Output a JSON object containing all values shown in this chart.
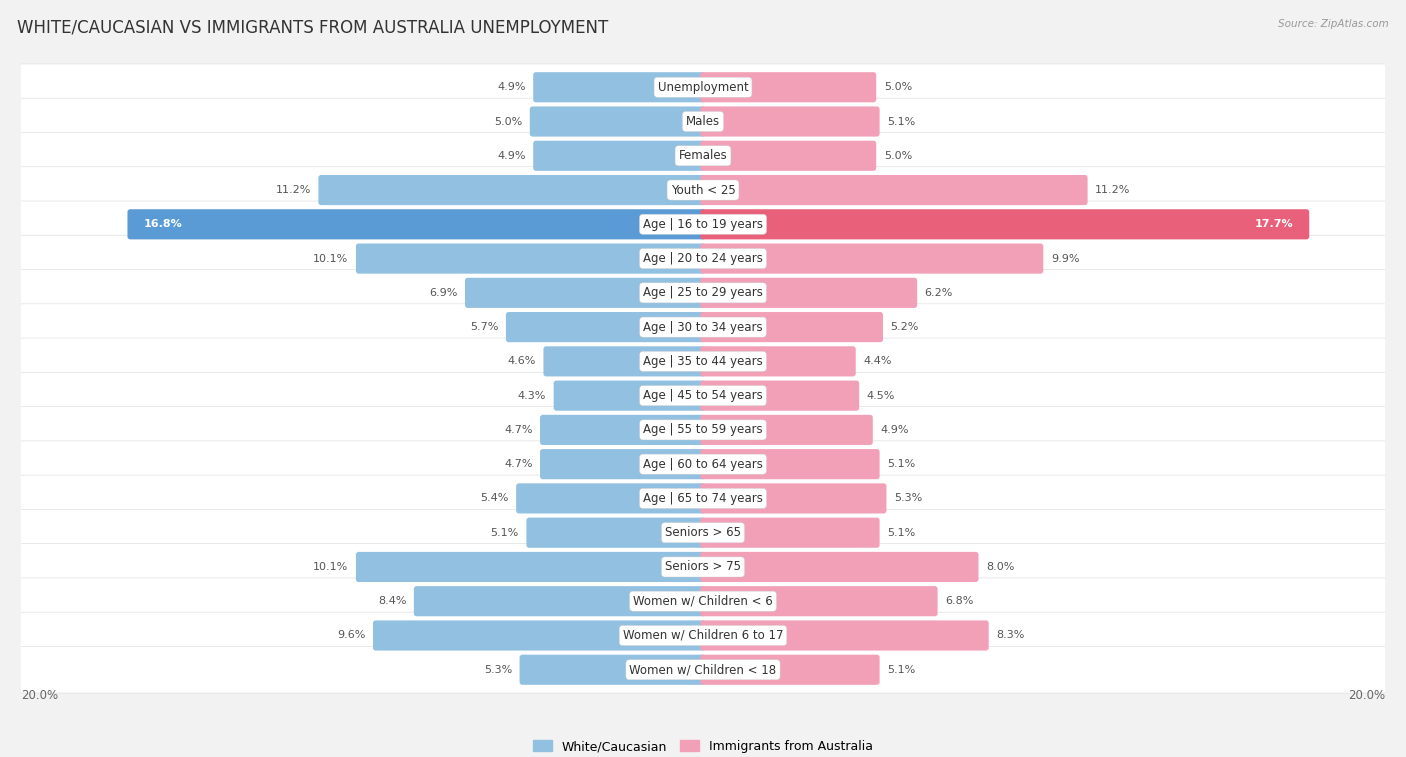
{
  "title": "WHITE/CAUCASIAN VS IMMIGRANTS FROM AUSTRALIA UNEMPLOYMENT",
  "source": "Source: ZipAtlas.com",
  "categories": [
    "Unemployment",
    "Males",
    "Females",
    "Youth < 25",
    "Age | 16 to 19 years",
    "Age | 20 to 24 years",
    "Age | 25 to 29 years",
    "Age | 30 to 34 years",
    "Age | 35 to 44 years",
    "Age | 45 to 54 years",
    "Age | 55 to 59 years",
    "Age | 60 to 64 years",
    "Age | 65 to 74 years",
    "Seniors > 65",
    "Seniors > 75",
    "Women w/ Children < 6",
    "Women w/ Children 6 to 17",
    "Women w/ Children < 18"
  ],
  "white_values": [
    4.9,
    5.0,
    4.9,
    11.2,
    16.8,
    10.1,
    6.9,
    5.7,
    4.6,
    4.3,
    4.7,
    4.7,
    5.4,
    5.1,
    10.1,
    8.4,
    9.6,
    5.3
  ],
  "immigrant_values": [
    5.0,
    5.1,
    5.0,
    11.2,
    17.7,
    9.9,
    6.2,
    5.2,
    4.4,
    4.5,
    4.9,
    5.1,
    5.3,
    5.1,
    8.0,
    6.8,
    8.3,
    5.1
  ],
  "white_color": "#92C0E0",
  "immigrant_color": "#F2A0B8",
  "white_highlight_color": "#5B9BD5",
  "immigrant_highlight_color": "#E8607A",
  "axis_limit": 20.0,
  "background_color": "#f2f2f2",
  "row_bg_color": "#ffffff",
  "row_separator_color": "#e0e0e0",
  "title_fontsize": 12,
  "label_fontsize": 8.5,
  "value_fontsize": 8,
  "legend_label_white": "White/Caucasian",
  "legend_label_immigrant": "Immigrants from Australia",
  "bar_height": 0.72
}
